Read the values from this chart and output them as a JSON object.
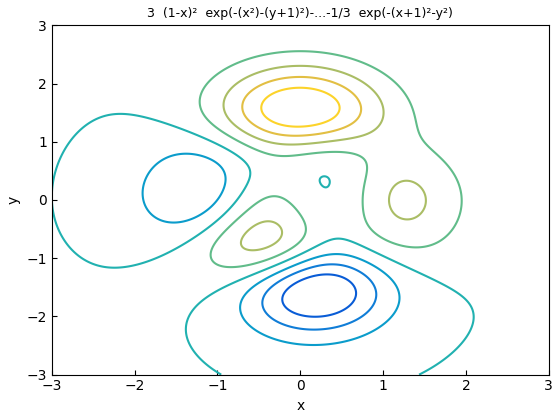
{
  "title": "3  (1-x)²  exp(-(x²)-(y+1)²)-...-1/3  exp(-(x+1)²-y²)",
  "xlabel": "x",
  "ylabel": "y",
  "xlim": [
    -3,
    3
  ],
  "ylim": [
    -3,
    3
  ],
  "num_contours": 10,
  "figsize": [
    5.6,
    4.2
  ],
  "dpi": 100,
  "xticks": [
    -3,
    -2,
    -1,
    0,
    1,
    2,
    3
  ],
  "yticks": [
    -3,
    -2,
    -1,
    0,
    1,
    2,
    3
  ]
}
